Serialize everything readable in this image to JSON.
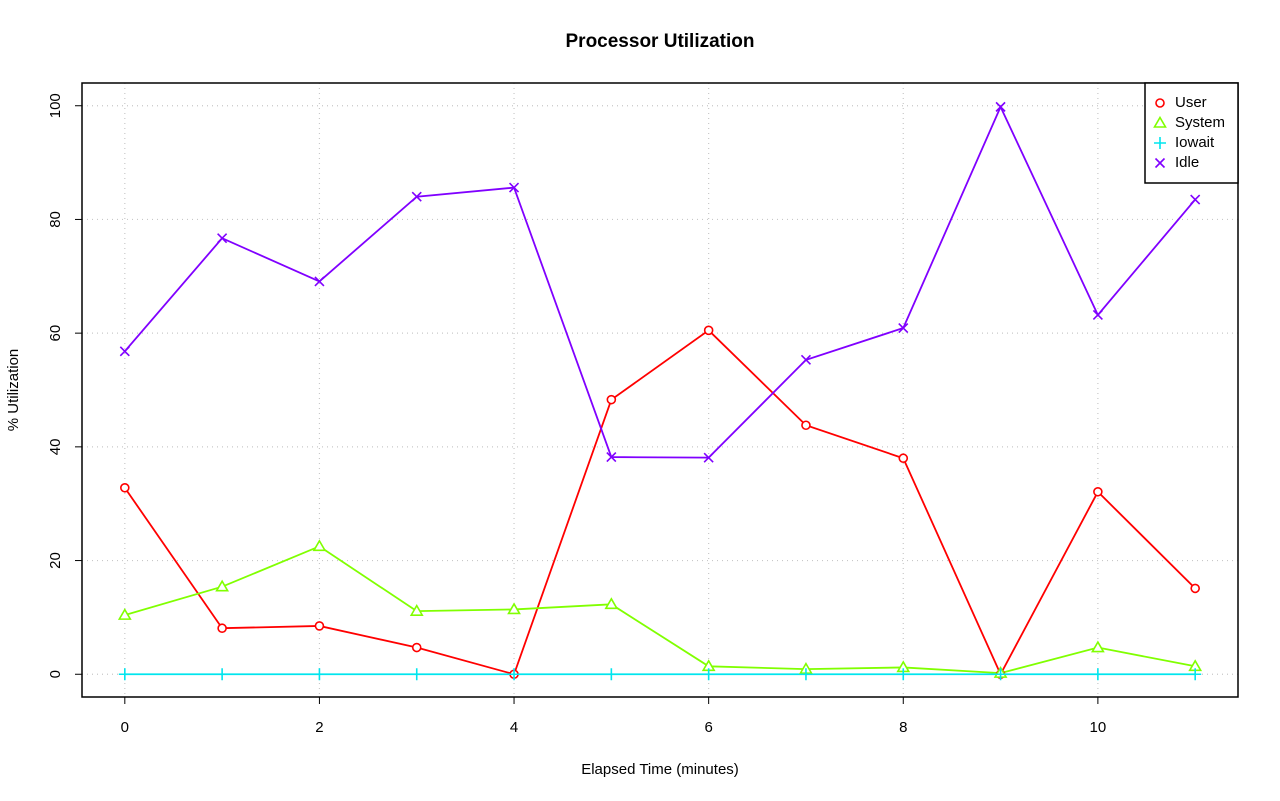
{
  "chart_data": {
    "type": "line",
    "title": "Processor Utilization",
    "x_label": "Elapsed Time (minutes)",
    "y_label": "% Utilization",
    "x": [
      0,
      1,
      2,
      3,
      4,
      5,
      6,
      7,
      8,
      9,
      10,
      11
    ],
    "series": [
      {
        "name": "User",
        "color": "#ff0000",
        "marker": "circle",
        "values": [
          32.8,
          8.1,
          8.5,
          4.7,
          0,
          48.3,
          60.5,
          43.8,
          38,
          0,
          32.1,
          15.1
        ]
      },
      {
        "name": "System",
        "color": "#80ff00",
        "marker": "triangle",
        "values": [
          10.4,
          15.4,
          22.5,
          11.1,
          11.4,
          12.3,
          1.4,
          0.9,
          1.2,
          0.2,
          4.7,
          1.4
        ]
      },
      {
        "name": "Iowait",
        "color": "#00e5ee",
        "marker": "plus",
        "values": [
          0,
          0,
          0,
          0,
          0,
          0,
          0,
          0,
          0,
          0,
          0,
          0
        ]
      },
      {
        "name": "Idle",
        "color": "#8000ff",
        "marker": "cross",
        "values": [
          56.8,
          76.7,
          69.1,
          84,
          85.6,
          38.2,
          38.1,
          55.3,
          60.9,
          99.8,
          63.2,
          83.5
        ]
      }
    ],
    "xlim": [
      -0.44,
      11.44
    ],
    "ylim": [
      -4,
      104
    ],
    "xticks": [
      0,
      2,
      4,
      6,
      8,
      10
    ],
    "yticks": [
      0,
      20,
      40,
      60,
      80,
      100
    ],
    "grid": true,
    "legend": "topright"
  }
}
